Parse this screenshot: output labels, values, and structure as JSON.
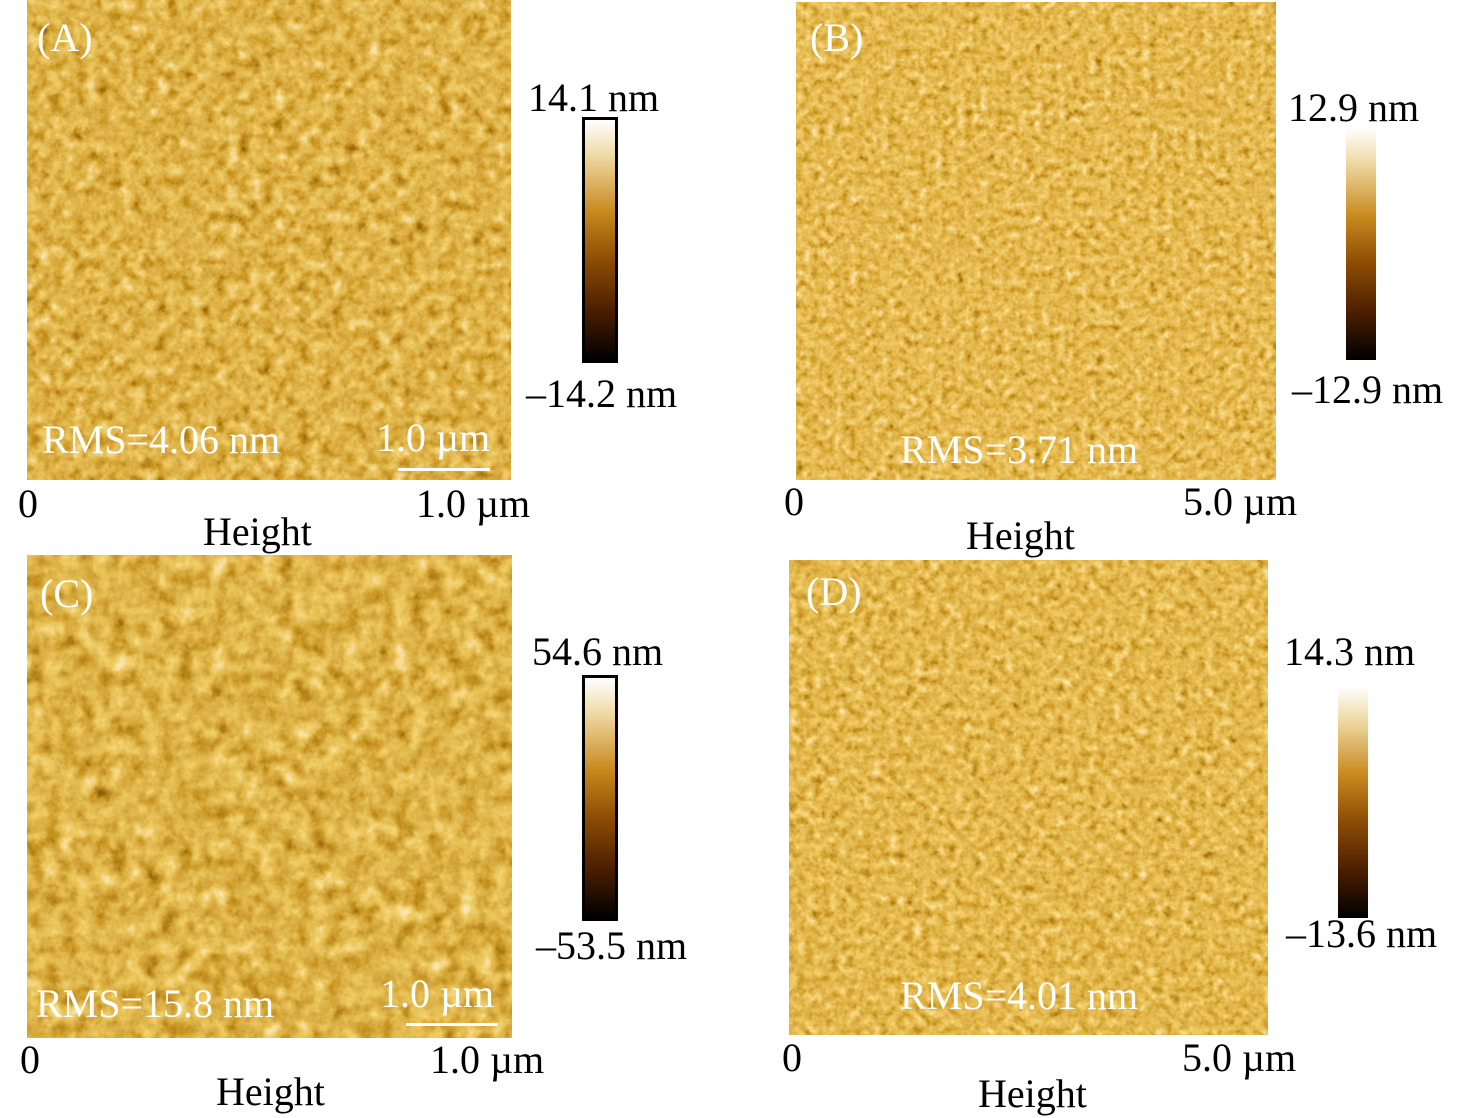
{
  "panels": [
    {
      "label": "(A)",
      "rms": "RMS=4.06 nm",
      "scalebar": "1.0 µm",
      "axis_start": "0",
      "axis_end": "1.0 µm",
      "axis_title": "Height",
      "cbar_max": "14.1 nm",
      "cbar_min": "–14.2 nm"
    },
    {
      "label": "(B)",
      "rms": "RMS=3.71 nm",
      "scalebar": "",
      "axis_start": "0",
      "axis_end": "5.0 µm",
      "axis_title": "Height",
      "cbar_max": "12.9 nm",
      "cbar_min": "–12.9 nm"
    },
    {
      "label": "(C)",
      "rms": "RMS=15.8 nm",
      "scalebar": "1.0 µm",
      "axis_start": "0",
      "axis_end": "1.0 µm",
      "axis_title": "Height",
      "cbar_max": "54.6 nm",
      "cbar_min": "–53.5 nm"
    },
    {
      "label": "(D)",
      "rms": "RMS=4.01 nm",
      "scalebar": "",
      "axis_start": "0",
      "axis_end": "5.0 µm",
      "axis_title": "Height",
      "cbar_max": "14.3 nm",
      "cbar_min": "–13.6 nm"
    }
  ],
  "colors": {
    "afm_dark": "#1a0800",
    "afm_mid": "#a0600c",
    "afm_light": "#fff2c8",
    "label": "#ffffff"
  }
}
